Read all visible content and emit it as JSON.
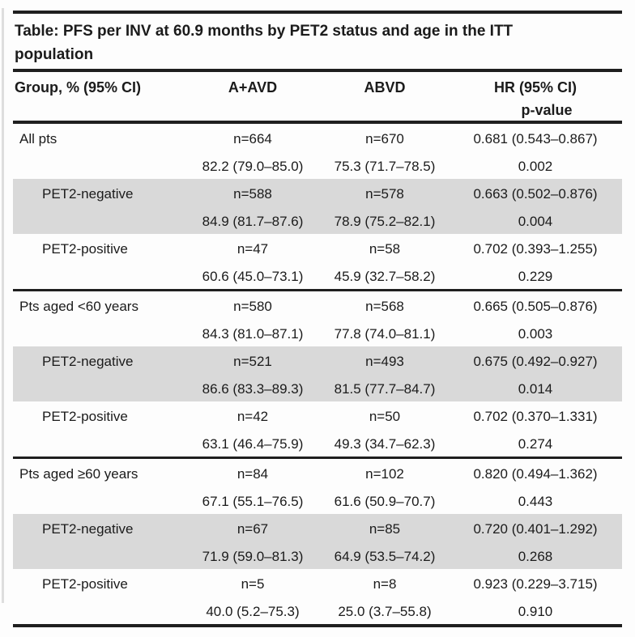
{
  "colors": {
    "text": "#1b1b1b",
    "rule": "#1f1f1f",
    "row_shade": "#d9d9d9",
    "bg": "#fdfdfd"
  },
  "table": {
    "title": {
      "line1": "Table: PFS per INV at 60.9 months by PET2 status and age in the ITT",
      "line2": "population"
    },
    "header": {
      "group": "Group, % (95% CI)",
      "arm_a": "A+AVD",
      "arm_b": "ABVD",
      "hr": "HR (95% CI)",
      "p": "p-value"
    },
    "rows": [
      {
        "label": "All pts",
        "indent": false,
        "shaded": false,
        "section_start": false,
        "n_a": "n=664",
        "n_b": "n=670",
        "hr": "0.681 (0.543–0.867)",
        "pct_a": "82.2 (79.0–85.0)",
        "pct_b": "75.3 (71.7–78.5)",
        "p": "0.002"
      },
      {
        "label": "PET2-negative",
        "indent": true,
        "shaded": true,
        "section_start": false,
        "n_a": "n=588",
        "n_b": "n=578",
        "hr": "0.663 (0.502–0.876)",
        "pct_a": "84.9 (81.7–87.6)",
        "pct_b": "78.9 (75.2–82.1)",
        "p": "0.004"
      },
      {
        "label": "PET2-positive",
        "indent": true,
        "shaded": false,
        "section_start": false,
        "n_a": "n=47",
        "n_b": "n=58",
        "hr": "0.702 (0.393–1.255)",
        "pct_a": "60.6 (45.0–73.1)",
        "pct_b": "45.9 (32.7–58.2)",
        "p": "0.229"
      },
      {
        "label": "Pts aged <60 years",
        "indent": false,
        "shaded": false,
        "section_start": true,
        "n_a": "n=580",
        "n_b": "n=568",
        "hr": "0.665 (0.505–0.876)",
        "pct_a": "84.3 (81.0–87.1)",
        "pct_b": "77.8 (74.0–81.1)",
        "p": "0.003"
      },
      {
        "label": "PET2-negative",
        "indent": true,
        "shaded": true,
        "section_start": false,
        "n_a": "n=521",
        "n_b": "n=493",
        "hr": "0.675 (0.492–0.927)",
        "pct_a": "86.6 (83.3–89.3)",
        "pct_b": "81.5 (77.7–84.7)",
        "p": "0.014"
      },
      {
        "label": "PET2-positive",
        "indent": true,
        "shaded": false,
        "section_start": false,
        "n_a": "n=42",
        "n_b": "n=50",
        "hr": "0.702 (0.370–1.331)",
        "pct_a": "63.1 (46.4–75.9)",
        "pct_b": "49.3 (34.7–62.3)",
        "p": "0.274"
      },
      {
        "label": "Pts aged ≥60 years",
        "indent": false,
        "shaded": false,
        "section_start": true,
        "n_a": "n=84",
        "n_b": "n=102",
        "hr": "0.820 (0.494–1.362)",
        "pct_a": "67.1 (55.1–76.5)",
        "pct_b": "61.6 (50.9–70.7)",
        "p": "0.443"
      },
      {
        "label": "PET2-negative",
        "indent": true,
        "shaded": true,
        "section_start": false,
        "n_a": "n=67",
        "n_b": "n=85",
        "hr": "0.720 (0.401–1.292)",
        "pct_a": "71.9 (59.0–81.3)",
        "pct_b": "64.9 (53.5–74.2)",
        "p": "0.268"
      },
      {
        "label": "PET2-positive",
        "indent": true,
        "shaded": false,
        "section_start": false,
        "n_a": "n=5",
        "n_b": "n=8",
        "hr": "0.923 (0.229–3.715)",
        "pct_a": "40.0 (5.2–75.3)",
        "pct_b": "25.0 (3.7–55.8)",
        "p": "0.910"
      }
    ]
  }
}
